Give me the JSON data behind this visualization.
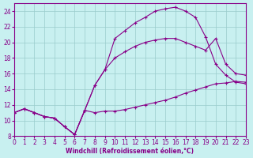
{
  "xlabel": "Windchill (Refroidissement éolien,°C)",
  "xlim": [
    0,
    23
  ],
  "ylim": [
    8,
    25
  ],
  "xticks": [
    0,
    1,
    2,
    3,
    4,
    5,
    6,
    7,
    8,
    9,
    10,
    11,
    12,
    13,
    14,
    15,
    16,
    17,
    18,
    19,
    20,
    21,
    22,
    23
  ],
  "yticks": [
    8,
    10,
    12,
    14,
    16,
    18,
    20,
    22,
    24
  ],
  "bg_color": "#c8f0f0",
  "line_color": "#880088",
  "grid_color": "#99cccc",
  "line1_x": [
    0,
    1,
    2,
    3,
    4,
    5,
    6,
    7,
    8,
    9,
    10,
    11,
    12,
    13,
    14,
    15,
    16,
    17,
    18,
    19,
    20,
    21,
    22,
    23
  ],
  "line1_y": [
    11.0,
    11.5,
    11.0,
    10.5,
    10.3,
    9.2,
    8.2,
    11.3,
    14.5,
    16.5,
    20.5,
    21.5,
    22.5,
    23.2,
    24.0,
    24.3,
    24.5,
    24.0,
    23.2,
    20.7,
    17.2,
    15.8,
    14.9,
    14.7
  ],
  "line2_x": [
    0,
    1,
    2,
    3,
    4,
    5,
    6,
    7,
    8,
    9,
    10,
    11,
    12,
    13,
    14,
    15,
    16,
    17,
    18,
    19,
    20,
    21,
    22,
    23
  ],
  "line2_y": [
    11.0,
    11.5,
    11.0,
    10.5,
    10.3,
    9.2,
    8.2,
    11.3,
    14.5,
    16.5,
    18.0,
    18.8,
    19.5,
    20.0,
    20.3,
    20.5,
    20.5,
    20.0,
    19.5,
    19.0,
    20.5,
    17.2,
    16.0,
    15.8
  ],
  "line3_x": [
    0,
    1,
    2,
    3,
    4,
    5,
    6,
    7,
    8,
    9,
    10,
    11,
    12,
    13,
    14,
    15,
    16,
    17,
    18,
    19,
    20,
    21,
    22,
    23
  ],
  "line3_y": [
    11.0,
    11.5,
    11.0,
    10.5,
    10.3,
    9.2,
    8.2,
    11.3,
    11.0,
    11.2,
    11.2,
    11.4,
    11.7,
    12.0,
    12.3,
    12.6,
    13.0,
    13.5,
    13.9,
    14.3,
    14.7,
    14.8,
    15.0,
    14.9
  ]
}
